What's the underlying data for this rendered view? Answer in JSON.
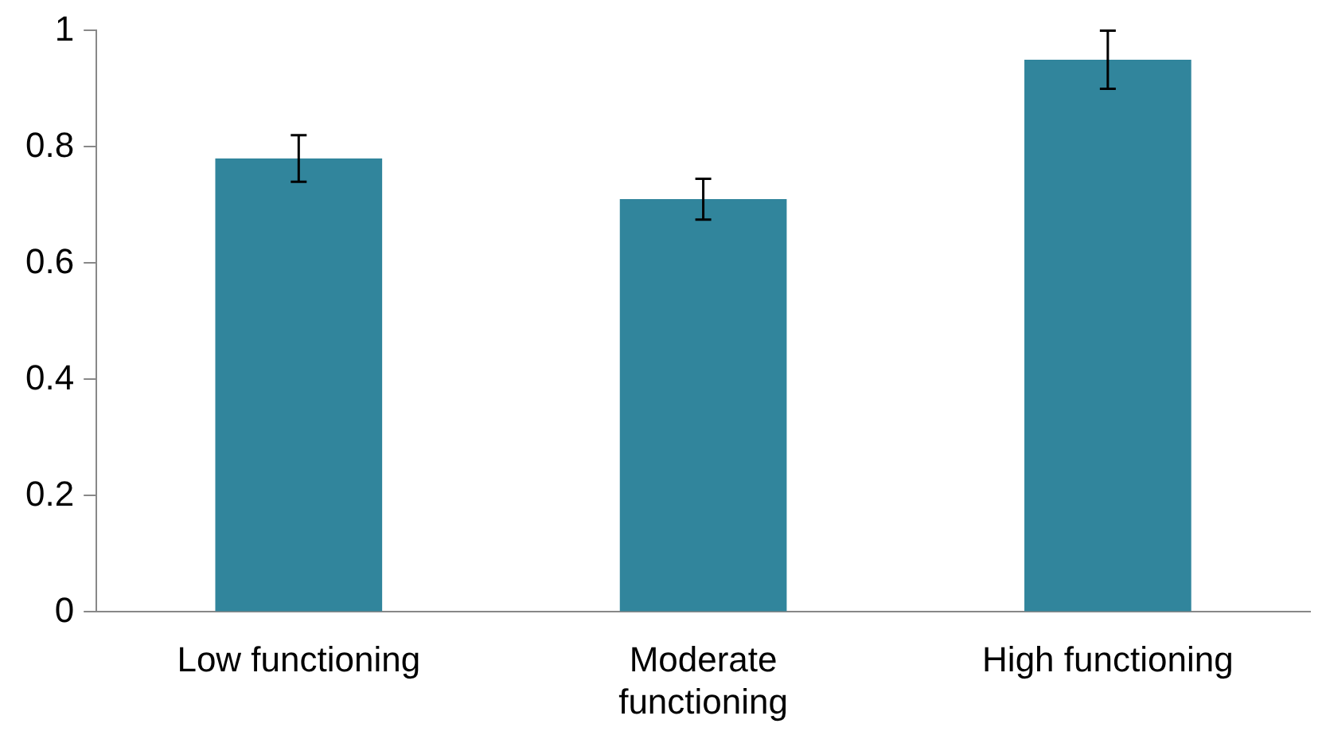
{
  "chart_data": {
    "type": "bar",
    "categories": [
      "Low functioning",
      "Moderate functioning",
      "High functioning"
    ],
    "values": [
      0.78,
      0.71,
      0.95
    ],
    "errors": [
      0.04,
      0.035,
      0.05
    ],
    "color": "#31859c",
    "ylim": [
      0,
      1
    ],
    "yticks": [
      0,
      0.2,
      0.4,
      0.6,
      0.8,
      1
    ],
    "grid": false,
    "legend": false
  }
}
